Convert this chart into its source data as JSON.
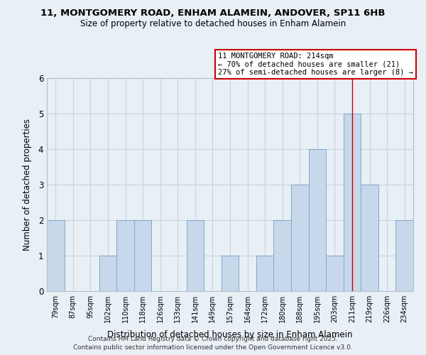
{
  "title": "11, MONTGOMERY ROAD, ENHAM ALAMEIN, ANDOVER, SP11 6HB",
  "subtitle": "Size of property relative to detached houses in Enham Alamein",
  "xlabel": "Distribution of detached houses by size in Enham Alamein",
  "ylabel": "Number of detached properties",
  "bar_labels": [
    "79sqm",
    "87sqm",
    "95sqm",
    "102sqm",
    "110sqm",
    "118sqm",
    "126sqm",
    "133sqm",
    "141sqm",
    "149sqm",
    "157sqm",
    "164sqm",
    "172sqm",
    "180sqm",
    "188sqm",
    "195sqm",
    "203sqm",
    "211sqm",
    "219sqm",
    "226sqm",
    "234sqm"
  ],
  "bar_values": [
    2,
    0,
    0,
    1,
    2,
    2,
    0,
    0,
    2,
    0,
    1,
    0,
    1,
    2,
    3,
    4,
    1,
    5,
    3,
    0,
    2
  ],
  "bar_color": "#c8d8eb",
  "bar_edgecolor": "#7ea8c8",
  "grid_color": "#c8d4e0",
  "bg_color": "#e8eff5",
  "plot_bg_color": "#e8eff5",
  "vline_x_index": 17,
  "vline_color": "#cc0000",
  "ylim": [
    0,
    6
  ],
  "yticks": [
    0,
    1,
    2,
    3,
    4,
    5,
    6
  ],
  "annotation_title": "11 MONTGOMERY ROAD: 214sqm",
  "annotation_line1": "← 70% of detached houses are smaller (21)",
  "annotation_line2": "27% of semi-detached houses are larger (8) →",
  "annotation_box_color": "#cc0000",
  "footer1": "Contains HM Land Registry data © Crown copyright and database right 2025.",
  "footer2": "Contains public sector information licensed under the Open Government Licence v3.0."
}
